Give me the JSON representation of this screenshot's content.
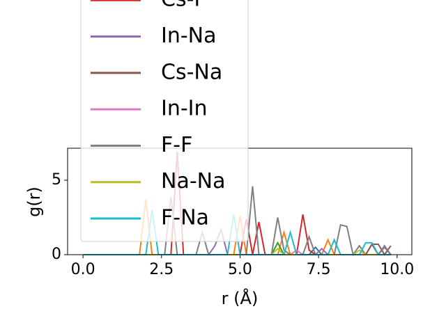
{
  "chart_data": {
    "type": "line",
    "x_label": "r (Å)",
    "y_label": "g(r)",
    "x": [
      0,
      0.2,
      0.4,
      0.6,
      0.8,
      1.0,
      1.2,
      1.4,
      1.6,
      1.8,
      2.0,
      2.2,
      2.4,
      2.6,
      2.8,
      3.0,
      3.2,
      3.4,
      3.6,
      3.8,
      4.0,
      4.2,
      4.4,
      4.6,
      4.8,
      5.0,
      5.2,
      5.4,
      5.6,
      5.8,
      6.0,
      6.2,
      6.4,
      6.6,
      6.8,
      7.0,
      7.2,
      7.4,
      7.6,
      7.8,
      8.0,
      8.2,
      8.4,
      8.6,
      8.8,
      9.0,
      9.2,
      9.4,
      9.6,
      9.8
    ],
    "xlim": [
      -0.49,
      10.47
    ],
    "ylim": [
      0,
      7.15
    ],
    "xticks": [
      {
        "value": 0,
        "label": "0.0"
      },
      {
        "value": 2.5,
        "label": "2.5"
      },
      {
        "value": 5,
        "label": "5.0"
      },
      {
        "value": 7.5,
        "label": "7.5"
      },
      {
        "value": 10,
        "label": "10.0"
      }
    ],
    "yticks": [
      0,
      5
    ],
    "series": [
      {
        "color": "#1f77b4",
        "values": [
          0,
          0,
          0,
          0,
          0,
          0,
          0,
          0,
          0,
          0,
          0,
          0,
          0,
          0,
          0,
          0,
          0,
          0,
          0,
          0,
          0,
          0,
          0,
          0,
          0,
          0,
          0,
          0,
          0,
          0,
          0,
          0,
          0,
          0,
          0,
          0,
          0,
          0.5,
          0,
          0,
          0,
          0,
          0,
          0,
          0,
          0,
          0,
          0,
          0,
          0
        ]
      },
      {
        "color": "#ff7f0e",
        "values": [
          0,
          0,
          0,
          0,
          0,
          0,
          0,
          0,
          0,
          0,
          3.7,
          0,
          0,
          0,
          0,
          0,
          0,
          0,
          0,
          0,
          0,
          0,
          0,
          0,
          0,
          2.6,
          0,
          0,
          0,
          0,
          0,
          0,
          1.5,
          0,
          0,
          0,
          0,
          0,
          0,
          1.0,
          0,
          0,
          0,
          0,
          0,
          0,
          0,
          0,
          0,
          0
        ]
      },
      {
        "color": "#2ca02c",
        "values": [
          0,
          0,
          0,
          0,
          0,
          0,
          0,
          0,
          0,
          0,
          0,
          0,
          0,
          0,
          0,
          0,
          0,
          0,
          0,
          0,
          0,
          0,
          0,
          0,
          0,
          0,
          0,
          0,
          0,
          0,
          0,
          0.8,
          0,
          0,
          0,
          0,
          0,
          0,
          0,
          0,
          0,
          0,
          0,
          0,
          0,
          0,
          0,
          0,
          0,
          0
        ]
      },
      {
        "name": "Cs-F",
        "color": "#d62728",
        "values": [
          0,
          0,
          0,
          0,
          0,
          0,
          0,
          0,
          0,
          0,
          0,
          0,
          0,
          0,
          0,
          6.9,
          0,
          0,
          0,
          0,
          0,
          0,
          0,
          0,
          0,
          0,
          2.4,
          0,
          2.2,
          0,
          0,
          0,
          0,
          0,
          0,
          2.7,
          0.3,
          0,
          0,
          0,
          0,
          0,
          0,
          0,
          0,
          0,
          0.7,
          0,
          0,
          0
        ]
      },
      {
        "name": "In-Na",
        "color": "#9467bd",
        "values": [
          0,
          0,
          0,
          0,
          0,
          0,
          0,
          0,
          0,
          0,
          0,
          0,
          0,
          0,
          0,
          0,
          0,
          0,
          0,
          0,
          0,
          0.6,
          1.7,
          0,
          0,
          0,
          0,
          0,
          0,
          0,
          0,
          0,
          0,
          0,
          0,
          0,
          0,
          0,
          0.4,
          0,
          0,
          0,
          0,
          0,
          0,
          0,
          0,
          0,
          0.5,
          0
        ]
      },
      {
        "name": "Cs-Na",
        "color": "#8c564b",
        "values": [
          0,
          0,
          0,
          0,
          0,
          0,
          0,
          0,
          0,
          0,
          0,
          0,
          0,
          0,
          0,
          0,
          0,
          0,
          0,
          0,
          0,
          0,
          0,
          0,
          0,
          0,
          0,
          0,
          0,
          0,
          0,
          0,
          0,
          0,
          0,
          0,
          0,
          0,
          0,
          0,
          0,
          0,
          0,
          0,
          0,
          0,
          0.7,
          0.7,
          0,
          0.6
        ]
      },
      {
        "name": "In-In",
        "color": "#e377c2",
        "values": [
          0,
          0,
          0,
          0,
          0,
          0,
          0,
          0,
          0,
          0,
          0,
          0,
          0,
          0,
          0,
          0,
          0,
          0,
          0,
          0,
          0,
          0,
          0,
          0,
          0,
          0,
          0,
          0,
          0,
          0,
          0,
          0,
          0,
          0,
          0.3,
          0,
          0,
          0,
          0,
          0,
          0,
          0,
          0,
          0,
          0,
          0,
          0,
          0,
          0,
          0
        ]
      },
      {
        "name": "F-F",
        "color": "#7f7f7f",
        "values": [
          0,
          0,
          0,
          0,
          0,
          0,
          0,
          0,
          0,
          0,
          0,
          0,
          0,
          0,
          3.9,
          0,
          0,
          0,
          0,
          1.5,
          0,
          0,
          0,
          0,
          0,
          0,
          0,
          4.6,
          0,
          0,
          0,
          2.5,
          0.3,
          0,
          0,
          0,
          1.2,
          0,
          0,
          0,
          0,
          2.0,
          1.9,
          0,
          0.6,
          0,
          0,
          0,
          0.6,
          0
        ]
      },
      {
        "name": "Na-Na",
        "color": "#bcbd22",
        "values": [
          0,
          0,
          0,
          0,
          0,
          0,
          0,
          0,
          0,
          0,
          0,
          0,
          0,
          0,
          0,
          0,
          0,
          0,
          0,
          0,
          0,
          0,
          0,
          0,
          0,
          0,
          0,
          0,
          0,
          0,
          0,
          0.4,
          0,
          0,
          0,
          0,
          0,
          0,
          0,
          0,
          0,
          0,
          0,
          0,
          0.3,
          0,
          0,
          0,
          0,
          0
        ]
      },
      {
        "name": "F-Na",
        "color": "#17becf",
        "values": [
          0,
          0,
          0,
          0,
          0,
          0,
          0,
          0,
          0,
          0,
          0,
          3.0,
          0,
          0,
          0,
          0,
          0,
          0,
          0,
          0,
          0,
          0,
          0,
          0,
          2.7,
          0,
          0,
          0,
          0,
          0,
          0,
          0,
          0,
          1.5,
          0,
          0,
          0,
          0,
          0,
          0,
          1.0,
          0,
          0,
          0,
          0,
          0.8,
          0.8,
          0,
          0,
          0
        ]
      }
    ]
  }
}
